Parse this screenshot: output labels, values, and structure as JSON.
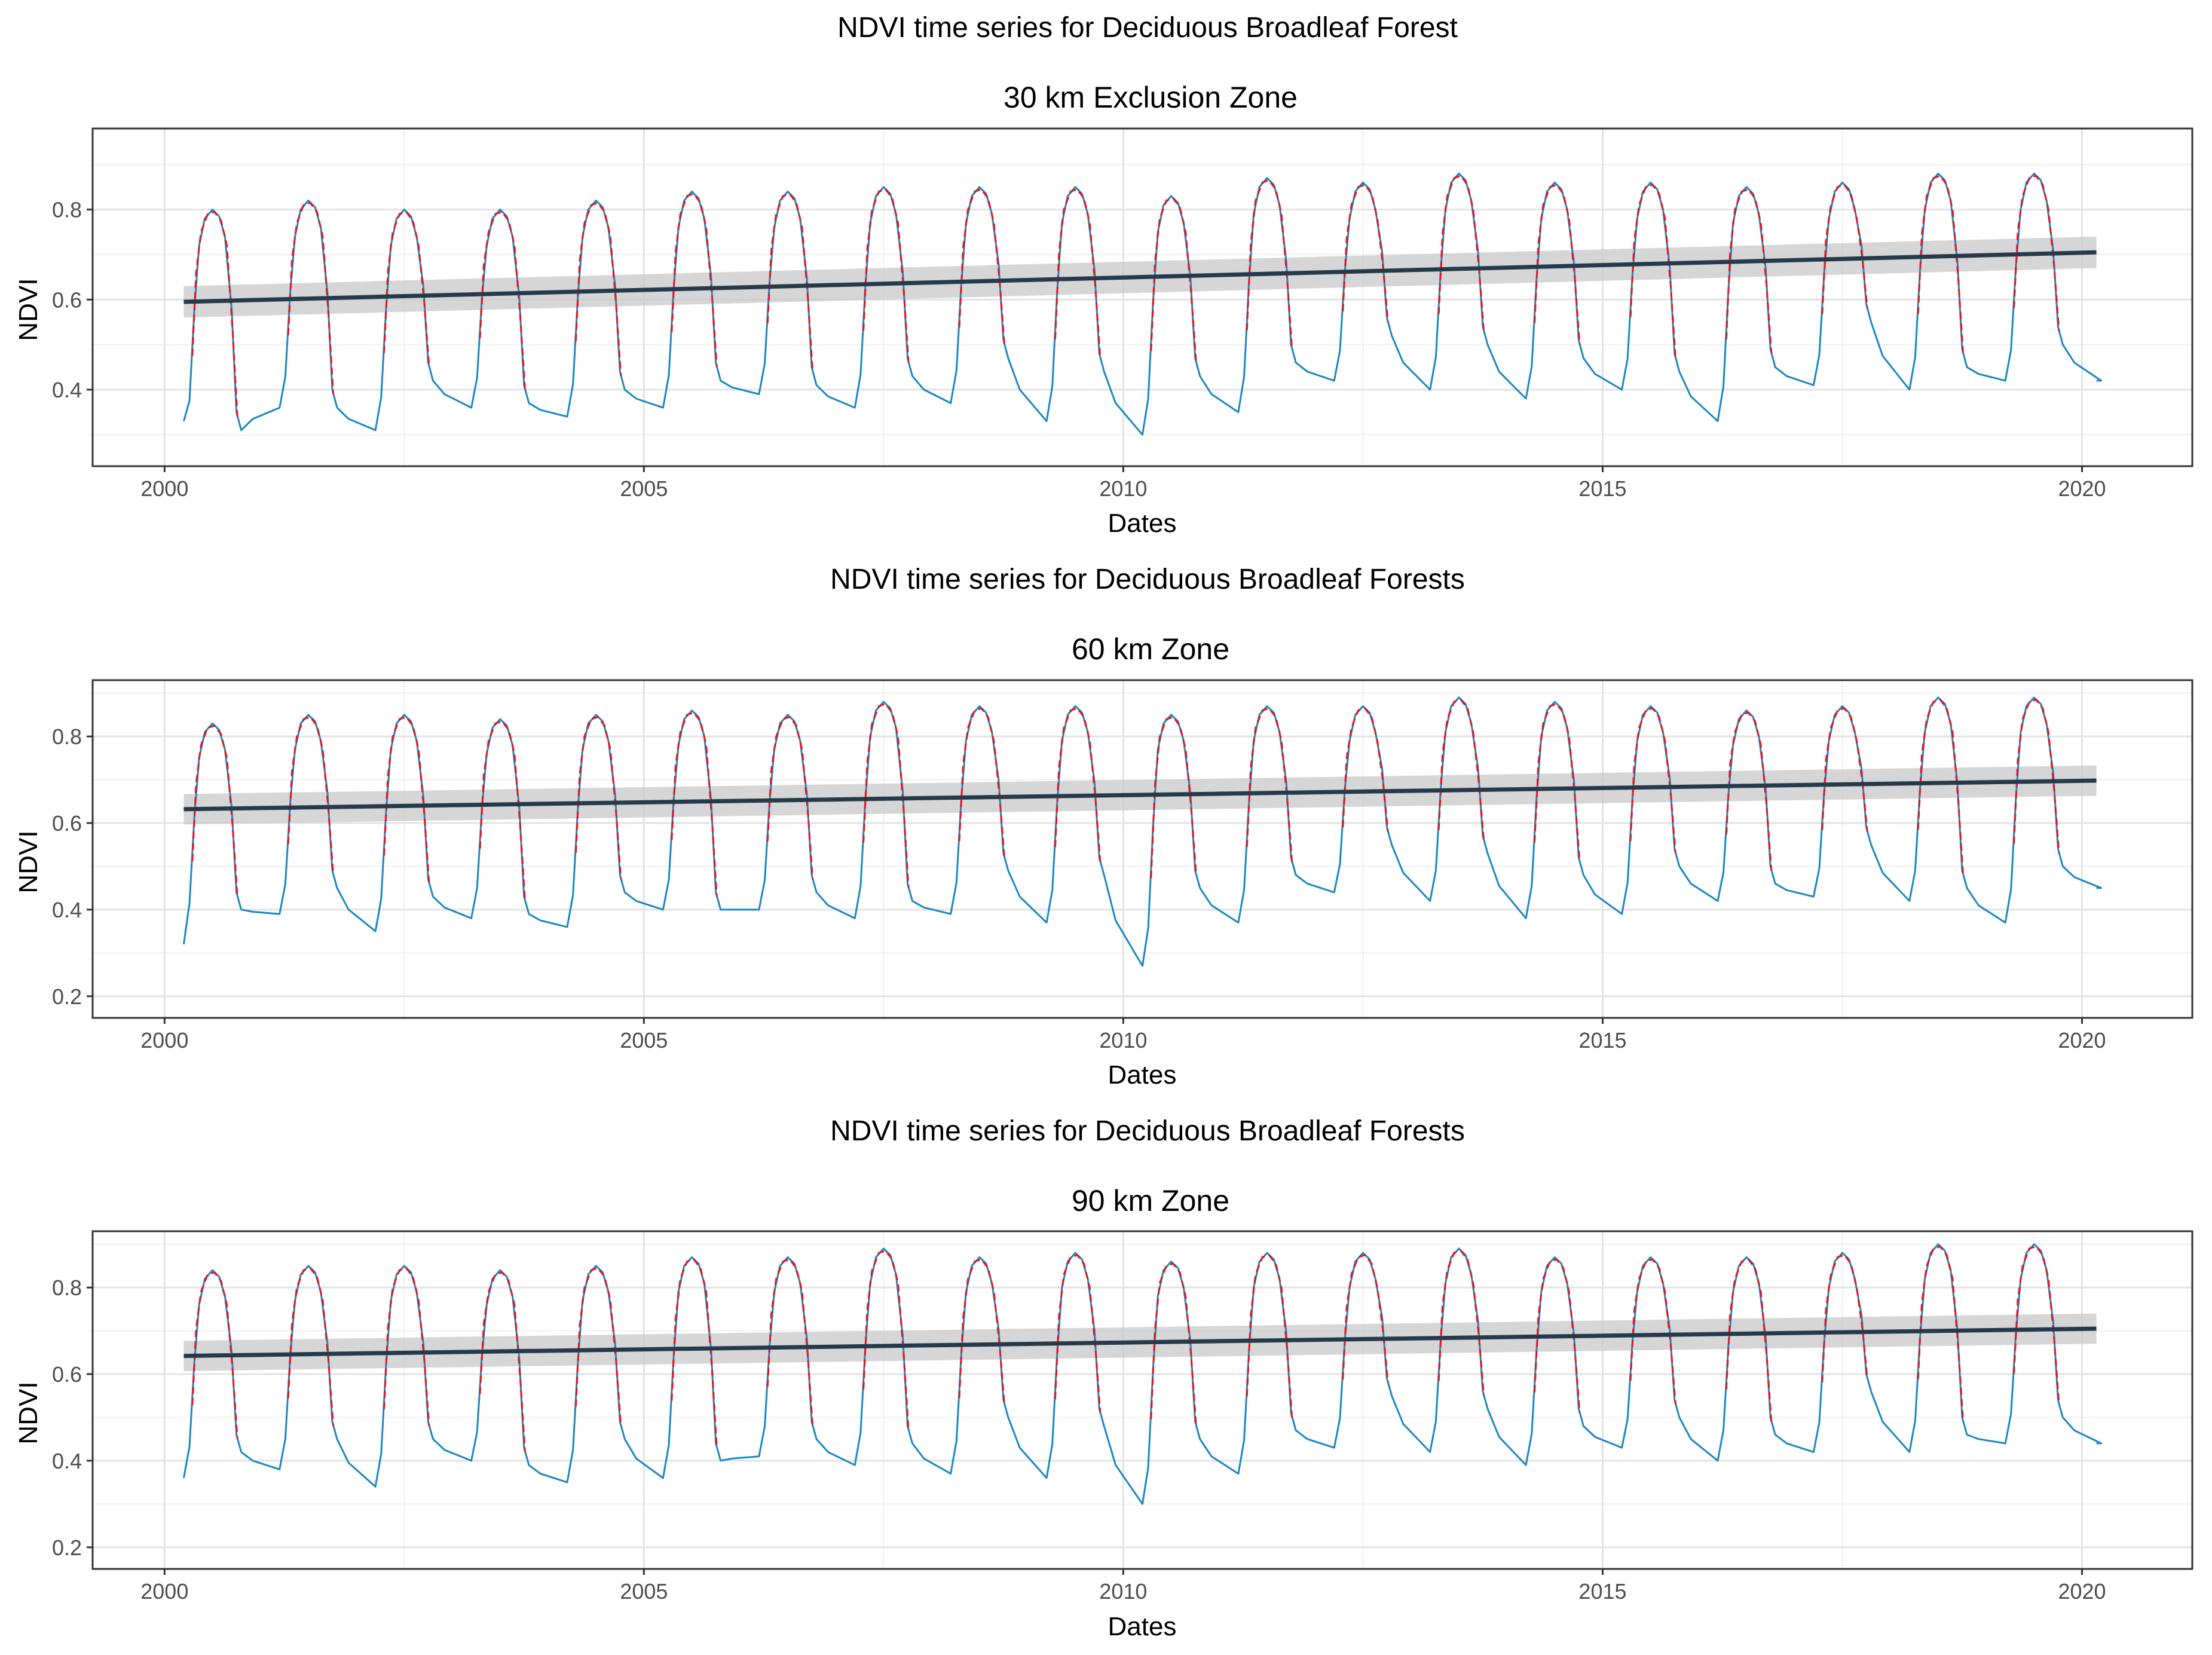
{
  "chart_data": [
    {
      "type": "line",
      "title": "NDVI time series for Deciduous Broadleaf Forest",
      "subtitle": "30 km Exclusion Zone",
      "xlabel": "Dates",
      "ylabel": "NDVI",
      "xlim": [
        1999.25,
        2021.15
      ],
      "ylim": [
        0.23,
        0.98
      ],
      "xticks": [
        2000,
        2005,
        2010,
        2015,
        2020
      ],
      "xtick_labels": [
        "2000",
        "2005",
        "2010",
        "2015",
        "2020"
      ],
      "yticks": [
        0.4,
        0.6,
        0.8
      ],
      "ytick_labels": [
        "0.4",
        "0.6",
        "0.8"
      ],
      "grid": true,
      "series": [
        {
          "name": "NDVI",
          "style": "solid",
          "color": "#1a87c4"
        },
        {
          "name": "Fitted seasonal",
          "style": "dashed",
          "color": "#e8151b"
        },
        {
          "name": "Linear trend",
          "style": "solid",
          "color": "#253a4a"
        }
      ],
      "start": {
        "x": 2000.2,
        "y": 0.33
      },
      "end": {
        "x": 2020.15,
        "y": 0.42
      },
      "years": [
        {
          "year": 2000,
          "peak": 0.8,
          "fall_min": 0.31,
          "winter_min": 0.3
        },
        {
          "year": 2001,
          "peak": 0.82,
          "fall_min": 0.36,
          "winter_min": 0.36
        },
        {
          "year": 2002,
          "peak": 0.8,
          "fall_min": 0.42,
          "winter_min": 0.31
        },
        {
          "year": 2003,
          "peak": 0.8,
          "fall_min": 0.37,
          "winter_min": 0.36
        },
        {
          "year": 2004,
          "peak": 0.82,
          "fall_min": 0.4,
          "winter_min": 0.34
        },
        {
          "year": 2005,
          "peak": 0.84,
          "fall_min": 0.42,
          "winter_min": 0.36
        },
        {
          "year": 2006,
          "peak": 0.84,
          "fall_min": 0.41,
          "winter_min": 0.39
        },
        {
          "year": 2007,
          "peak": 0.85,
          "fall_min": 0.43,
          "winter_min": 0.36
        },
        {
          "year": 2008,
          "peak": 0.85,
          "fall_min": 0.47,
          "winter_min": 0.37
        },
        {
          "year": 2009,
          "peak": 0.85,
          "fall_min": 0.44,
          "winter_min": 0.33
        },
        {
          "year": 2010,
          "peak": 0.83,
          "fall_min": 0.43,
          "winter_min": 0.3
        },
        {
          "year": 2011,
          "peak": 0.87,
          "fall_min": 0.46,
          "winter_min": 0.35
        },
        {
          "year": 2012,
          "peak": 0.86,
          "fall_min": 0.52,
          "winter_min": 0.42
        },
        {
          "year": 2013,
          "peak": 0.88,
          "fall_min": 0.5,
          "winter_min": 0.4
        },
        {
          "year": 2014,
          "peak": 0.86,
          "fall_min": 0.47,
          "winter_min": 0.38
        },
        {
          "year": 2015,
          "peak": 0.86,
          "fall_min": 0.44,
          "winter_min": 0.4
        },
        {
          "year": 2016,
          "peak": 0.85,
          "fall_min": 0.45,
          "winter_min": 0.33
        },
        {
          "year": 2017,
          "peak": 0.86,
          "fall_min": 0.55,
          "winter_min": 0.41
        },
        {
          "year": 2018,
          "peak": 0.88,
          "fall_min": 0.45,
          "winter_min": 0.4
        },
        {
          "year": 2019,
          "peak": 0.88,
          "fall_min": 0.5,
          "winter_min": 0.42
        }
      ],
      "trend": {
        "x": [
          2000.2,
          2020.15
        ],
        "y": [
          0.595,
          0.705
        ],
        "ci_start": 0.035,
        "ci_end": 0.035
      }
    },
    {
      "type": "line",
      "title": "NDVI time series for Deciduous Broadleaf Forests",
      "subtitle": "60 km Zone",
      "xlabel": "Dates",
      "ylabel": "NDVI",
      "xlim": [
        1999.25,
        2021.15
      ],
      "ylim": [
        0.15,
        0.93
      ],
      "xticks": [
        2000,
        2005,
        2010,
        2015,
        2020
      ],
      "xtick_labels": [
        "2000",
        "2005",
        "2010",
        "2015",
        "2020"
      ],
      "yticks": [
        0.2,
        0.4,
        0.6,
        0.8
      ],
      "ytick_labels": [
        "0.2",
        "0.4",
        "0.6",
        "0.8"
      ],
      "grid": true,
      "series": [
        {
          "name": "NDVI",
          "style": "solid",
          "color": "#1a87c4"
        },
        {
          "name": "Fitted seasonal",
          "style": "dashed",
          "color": "#e8151b"
        },
        {
          "name": "Linear trend",
          "style": "solid",
          "color": "#253a4a"
        }
      ],
      "start": {
        "x": 2000.2,
        "y": 0.32
      },
      "end": {
        "x": 2020.15,
        "y": 0.45
      },
      "years": [
        {
          "year": 2000,
          "peak": 0.83,
          "fall_min": 0.4,
          "winter_min": 0.34
        },
        {
          "year": 2001,
          "peak": 0.85,
          "fall_min": 0.45,
          "winter_min": 0.39
        },
        {
          "year": 2002,
          "peak": 0.85,
          "fall_min": 0.43,
          "winter_min": 0.35
        },
        {
          "year": 2003,
          "peak": 0.84,
          "fall_min": 0.39,
          "winter_min": 0.38
        },
        {
          "year": 2004,
          "peak": 0.85,
          "fall_min": 0.44,
          "winter_min": 0.36
        },
        {
          "year": 2005,
          "peak": 0.86,
          "fall_min": 0.4,
          "winter_min": 0.4
        },
        {
          "year": 2006,
          "peak": 0.85,
          "fall_min": 0.44,
          "winter_min": 0.4
        },
        {
          "year": 2007,
          "peak": 0.88,
          "fall_min": 0.42,
          "winter_min": 0.38
        },
        {
          "year": 2008,
          "peak": 0.87,
          "fall_min": 0.49,
          "winter_min": 0.39
        },
        {
          "year": 2009,
          "peak": 0.87,
          "fall_min": 0.48,
          "winter_min": 0.37
        },
        {
          "year": 2010,
          "peak": 0.85,
          "fall_min": 0.45,
          "winter_min": 0.27
        },
        {
          "year": 2011,
          "peak": 0.87,
          "fall_min": 0.48,
          "winter_min": 0.37
        },
        {
          "year": 2012,
          "peak": 0.87,
          "fall_min": 0.55,
          "winter_min": 0.44
        },
        {
          "year": 2013,
          "peak": 0.89,
          "fall_min": 0.53,
          "winter_min": 0.42
        },
        {
          "year": 2014,
          "peak": 0.88,
          "fall_min": 0.48,
          "winter_min": 0.38
        },
        {
          "year": 2015,
          "peak": 0.87,
          "fall_min": 0.5,
          "winter_min": 0.39
        },
        {
          "year": 2016,
          "peak": 0.86,
          "fall_min": 0.46,
          "winter_min": 0.42
        },
        {
          "year": 2017,
          "peak": 0.87,
          "fall_min": 0.55,
          "winter_min": 0.43
        },
        {
          "year": 2018,
          "peak": 0.89,
          "fall_min": 0.45,
          "winter_min": 0.42
        },
        {
          "year": 2019,
          "peak": 0.89,
          "fall_min": 0.5,
          "winter_min": 0.37
        }
      ],
      "trend": {
        "x": [
          2000.2,
          2020.15
        ],
        "y": [
          0.632,
          0.698
        ],
        "ci_start": 0.035,
        "ci_end": 0.035
      }
    },
    {
      "type": "line",
      "title": "NDVI time series for Deciduous Broadleaf Forests",
      "subtitle": "90 km Zone",
      "xlabel": "Dates",
      "ylabel": "NDVI",
      "xlim": [
        1999.25,
        2021.15
      ],
      "ylim": [
        0.15,
        0.93
      ],
      "xticks": [
        2000,
        2005,
        2010,
        2015,
        2020
      ],
      "xtick_labels": [
        "2000",
        "2005",
        "2010",
        "2015",
        "2020"
      ],
      "yticks": [
        0.2,
        0.4,
        0.6,
        0.8
      ],
      "ytick_labels": [
        "0.2",
        "0.4",
        "0.6",
        "0.8"
      ],
      "grid": true,
      "series": [
        {
          "name": "NDVI",
          "style": "solid",
          "color": "#1a87c4"
        },
        {
          "name": "Fitted seasonal",
          "style": "dashed",
          "color": "#e8151b"
        },
        {
          "name": "Linear trend",
          "style": "solid",
          "color": "#253a4a"
        }
      ],
      "start": {
        "x": 2000.2,
        "y": 0.36
      },
      "end": {
        "x": 2020.15,
        "y": 0.44
      },
      "years": [
        {
          "year": 2000,
          "peak": 0.84,
          "fall_min": 0.42,
          "winter_min": 0.36
        },
        {
          "year": 2001,
          "peak": 0.85,
          "fall_min": 0.45,
          "winter_min": 0.38
        },
        {
          "year": 2002,
          "peak": 0.85,
          "fall_min": 0.45,
          "winter_min": 0.34
        },
        {
          "year": 2003,
          "peak": 0.84,
          "fall_min": 0.39,
          "winter_min": 0.4
        },
        {
          "year": 2004,
          "peak": 0.85,
          "fall_min": 0.45,
          "winter_min": 0.35
        },
        {
          "year": 2005,
          "peak": 0.87,
          "fall_min": 0.4,
          "winter_min": 0.36
        },
        {
          "year": 2006,
          "peak": 0.87,
          "fall_min": 0.45,
          "winter_min": 0.41
        },
        {
          "year": 2007,
          "peak": 0.89,
          "fall_min": 0.44,
          "winter_min": 0.39
        },
        {
          "year": 2008,
          "peak": 0.87,
          "fall_min": 0.5,
          "winter_min": 0.37
        },
        {
          "year": 2009,
          "peak": 0.88,
          "fall_min": 0.48,
          "winter_min": 0.36
        },
        {
          "year": 2010,
          "peak": 0.86,
          "fall_min": 0.45,
          "winter_min": 0.3
        },
        {
          "year": 2011,
          "peak": 0.88,
          "fall_min": 0.47,
          "winter_min": 0.37
        },
        {
          "year": 2012,
          "peak": 0.88,
          "fall_min": 0.55,
          "winter_min": 0.43
        },
        {
          "year": 2013,
          "peak": 0.89,
          "fall_min": 0.52,
          "winter_min": 0.42
        },
        {
          "year": 2014,
          "peak": 0.87,
          "fall_min": 0.48,
          "winter_min": 0.39
        },
        {
          "year": 2015,
          "peak": 0.87,
          "fall_min": 0.5,
          "winter_min": 0.43
        },
        {
          "year": 2016,
          "peak": 0.87,
          "fall_min": 0.46,
          "winter_min": 0.4
        },
        {
          "year": 2017,
          "peak": 0.88,
          "fall_min": 0.56,
          "winter_min": 0.42
        },
        {
          "year": 2018,
          "peak": 0.9,
          "fall_min": 0.46,
          "winter_min": 0.42
        },
        {
          "year": 2019,
          "peak": 0.9,
          "fall_min": 0.5,
          "winter_min": 0.44
        }
      ],
      "trend": {
        "x": [
          2000.2,
          2020.15
        ],
        "y": [
          0.642,
          0.705
        ],
        "ci_start": 0.035,
        "ci_end": 0.035
      }
    }
  ]
}
